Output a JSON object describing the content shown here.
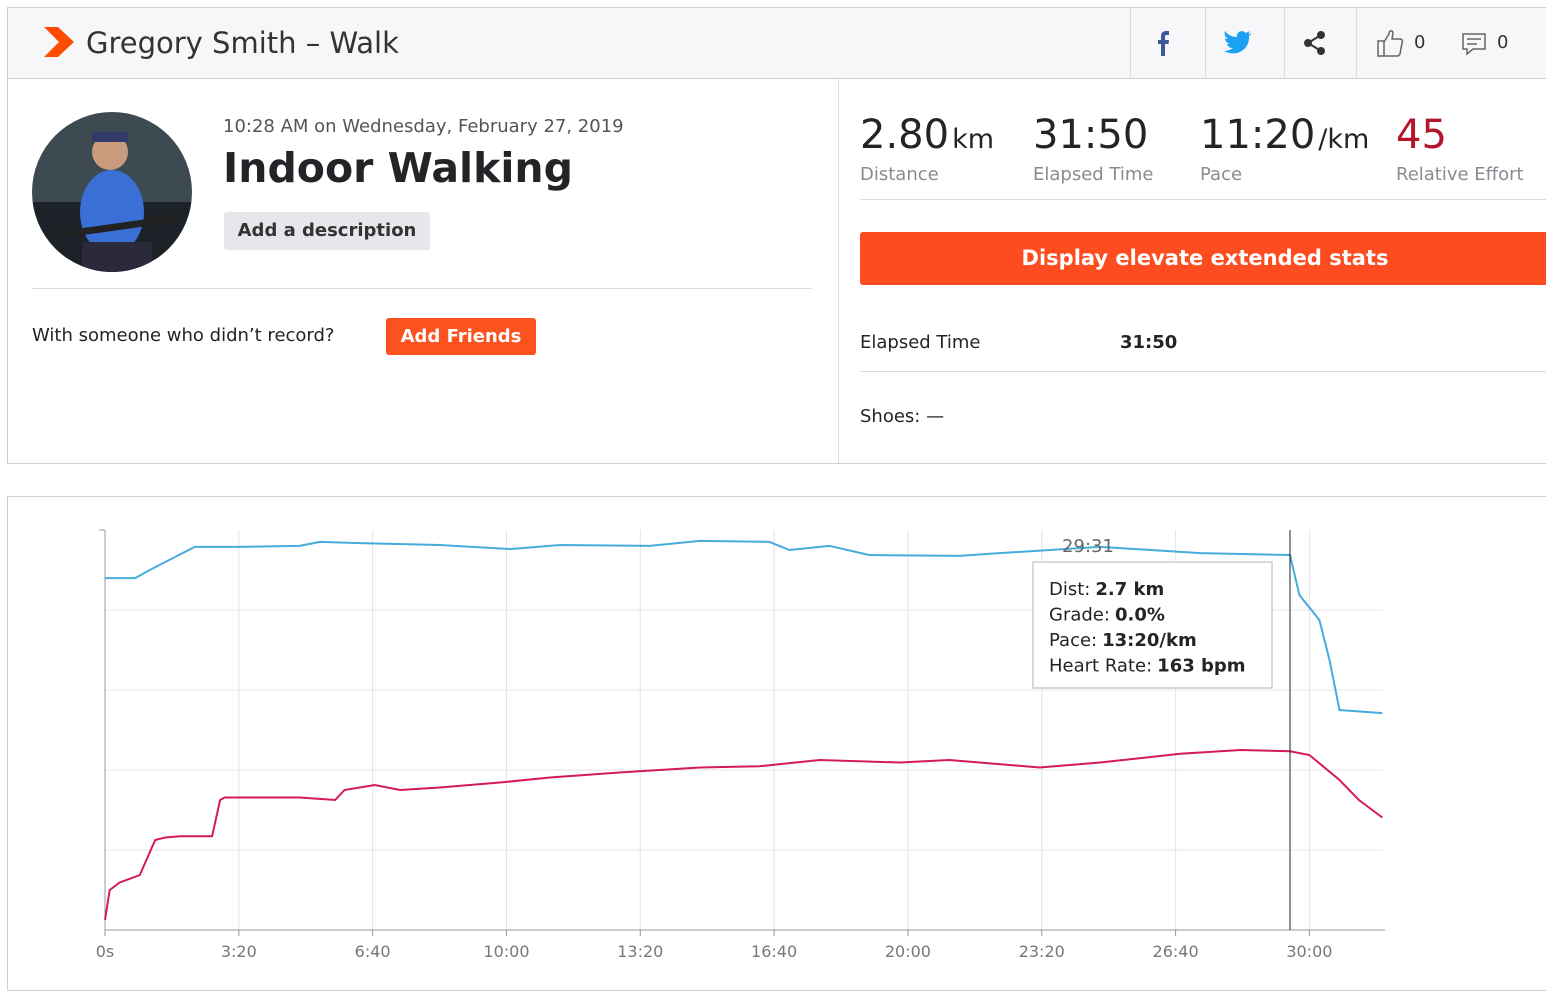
{
  "header": {
    "title": "Gregory Smith – Walk",
    "kudos": 0,
    "comments": 0
  },
  "activity": {
    "datetime": "10:28 AM on Wednesday, February 27, 2019",
    "name": "Indoor Walking",
    "add_description": "Add a description",
    "with_someone": "With someone who didn’t record?",
    "add_friends": "Add Friends"
  },
  "stats": [
    {
      "value": "2.80",
      "unit": "km",
      "label": "Distance"
    },
    {
      "value": "31:50",
      "label": "Elapsed Time"
    },
    {
      "value": "11:20",
      "unit": "/km",
      "label": "Pace"
    },
    {
      "value": 45,
      "label": "Relative Effort"
    }
  ],
  "extended_button": "Display elevate extended stats",
  "details": {
    "elapsed_label": "Elapsed Time",
    "elapsed_value": "31:50",
    "shoes": "Shoes: —"
  },
  "chart_data": {
    "type": "line",
    "xlim": [
      0,
      1910
    ],
    "xticks": [
      {
        "value": 0,
        "label": "0s"
      },
      {
        "value": 200,
        "label": "3:20"
      },
      {
        "value": 400,
        "label": "6:40"
      },
      {
        "value": 600,
        "label": "10:00"
      },
      {
        "value": 800,
        "label": "13:20"
      },
      {
        "value": 1000,
        "label": "16:40"
      },
      {
        "value": 1200,
        "label": "20:00"
      },
      {
        "value": 1400,
        "label": "23:20"
      },
      {
        "value": 1600,
        "label": "26:40"
      },
      {
        "value": 1800,
        "label": "30:00"
      }
    ],
    "ylim": [
      2000,
      720
    ],
    "y2lim": [
      20,
      340
    ],
    "grid": true,
    "series": [
      {
        "color": "#45acdc",
        "x": [
          0,
          45,
          67,
          134,
          202,
          291,
          321,
          381,
          500,
          605,
          680,
          814,
          889,
          993,
          1023,
          1083,
          1142,
          1277,
          1337,
          1487,
          1637,
          1771,
          1785,
          1815,
          1830,
          1845,
          1909
        ],
        "values": [
          874,
          874,
          848,
          774,
          774,
          771,
          758,
          762,
          768,
          781,
          768,
          771,
          755,
          758,
          784,
          771,
          800,
          803,
          794,
          774,
          794,
          800,
          928,
          1008,
          1136,
          1296,
          1306
        ]
      },
      {
        "color": "#d41a5a",
        "axis": "y2",
        "x": [
          0,
          7,
          22,
          52,
          75,
          90,
          112,
          160,
          172,
          179,
          291,
          344,
          358,
          403,
          441,
          500,
          590,
          665,
          769,
          889,
          978,
          1068,
          1188,
          1262,
          1397,
          1487,
          1607,
          1697,
          1771,
          1800,
          1845,
          1874,
          1909
        ],
        "values": [
          28,
          52,
          58,
          64,
          92,
          94,
          95,
          95,
          124,
          126,
          126,
          124,
          132,
          136,
          132,
          134,
          138,
          142,
          146,
          150,
          151,
          156,
          154,
          156,
          150,
          154,
          161,
          164,
          163,
          160,
          140,
          124,
          110
        ]
      }
    ],
    "cursor": {
      "x": 1771,
      "label": "29:31"
    },
    "tooltip": [
      {
        "label": "Dist:",
        "value": "2.7 km"
      },
      {
        "label": "Grade:",
        "value": "0.0%"
      },
      {
        "label": "Pace:",
        "value": "13:20/km"
      },
      {
        "label": "Heart Rate:",
        "value": "163 bpm"
      }
    ]
  }
}
